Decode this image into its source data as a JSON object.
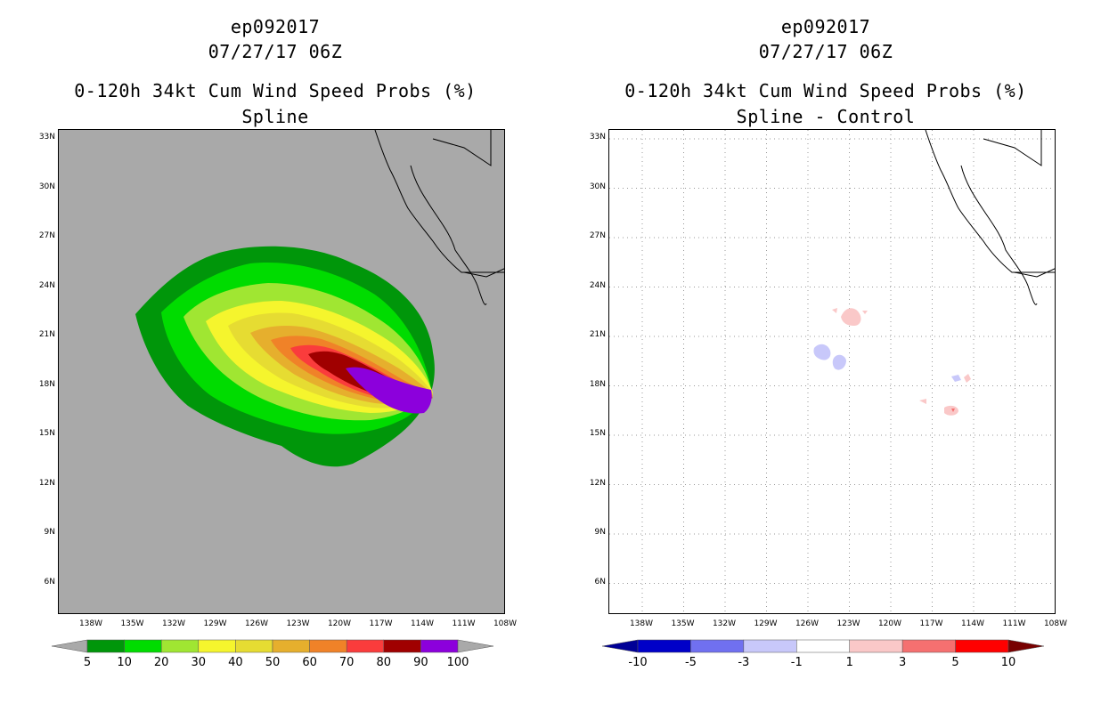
{
  "left_panel": {
    "storm_id": "ep092017",
    "datetime": "07/27/17 06Z",
    "product": "0-120h 34kt Cum Wind Speed Probs (%)",
    "subtitle": "Spline",
    "background_color": "#a9a9a9",
    "colorbar": {
      "labels": [
        "5",
        "10",
        "20",
        "30",
        "40",
        "50",
        "60",
        "70",
        "80",
        "90",
        "100"
      ],
      "colors": [
        "#00960a",
        "#00dc00",
        "#a0e632",
        "#f5f52d",
        "#e6dc32",
        "#e6af2d",
        "#f08228",
        "#fa3c3c",
        "#a00000",
        "#8c00dc"
      ]
    }
  },
  "right_panel": {
    "storm_id": "ep092017",
    "datetime": "07/27/17 06Z",
    "product": "0-120h 34kt Cum Wind Speed Probs (%)",
    "subtitle": "Spline - Control",
    "colorbar": {
      "labels": [
        "-10",
        "-5",
        "-3",
        "-1",
        "1",
        "3",
        "5",
        "10"
      ],
      "colors": [
        "#0000c8",
        "#7070f0",
        "#c8c8fa",
        "#ffffff",
        "#fac8c8",
        "#f57070",
        "#ff0000"
      ],
      "under_color": "#000096",
      "over_color": "#780000"
    }
  },
  "axes": {
    "lat_labels": [
      "33N",
      "30N",
      "27N",
      "24N",
      "21N",
      "18N",
      "15N",
      "12N",
      "9N",
      "6N"
    ],
    "lon_labels": [
      "138W",
      "135W",
      "132W",
      "129W",
      "126W",
      "123W",
      "120W",
      "117W",
      "114W",
      "111W",
      "108W"
    ]
  }
}
